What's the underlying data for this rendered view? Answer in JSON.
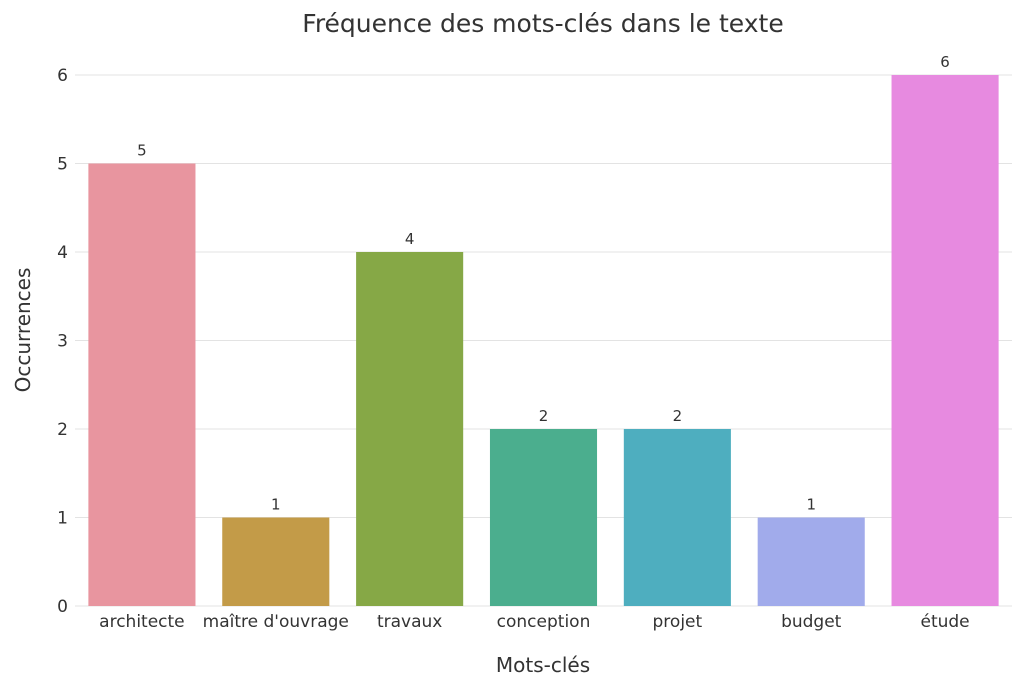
{
  "chart_data": {
    "type": "bar",
    "title": "Fréquence des mots-clés dans le texte",
    "xlabel": "Mots-clés",
    "ylabel": "Occurrences",
    "categories": [
      "architecte",
      "maître d'ouvrage",
      "travaux",
      "conception",
      "projet",
      "budget",
      "étude"
    ],
    "values": [
      5,
      1,
      4,
      2,
      2,
      1,
      6
    ],
    "colors": [
      "#e8959f",
      "#c39b48",
      "#86a846",
      "#4bae8e",
      "#4eaebf",
      "#a1abeb",
      "#e78ae0"
    ],
    "ylim": [
      0,
      6
    ],
    "yticks": [
      0,
      1,
      2,
      3,
      4,
      5,
      6
    ],
    "grid": true,
    "data_labels": true
  }
}
